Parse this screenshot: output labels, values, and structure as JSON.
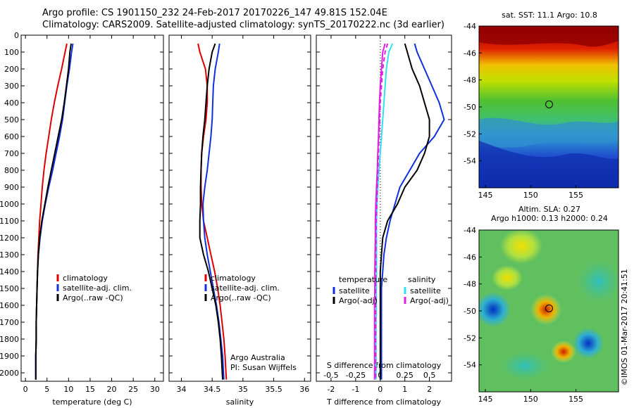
{
  "header": {
    "line1": "Argo profile: CS 1901150_232 24-Feb-2017 20170226_147 49.81S 152.04E",
    "line2": "Climatology: CARS2009. Satellite-adjusted climatology: synTS_20170222.nc (3d earlier)"
  },
  "colors": {
    "climatology": "#e00000",
    "satellite": "#1030e0",
    "argo": "#000000",
    "argo_adj_s": "#e020e0",
    "sat_s": "#30e0f0"
  },
  "chart_data": [
    {
      "type": "line",
      "name": "temperature-profile",
      "xlabel": "temperature (deg C)",
      "xlim": [
        -1,
        32
      ],
      "ylim": [
        2050,
        0
      ],
      "xticks": [
        0,
        5,
        10,
        15,
        20,
        25,
        30
      ],
      "yticks": [
        0,
        100,
        200,
        300,
        400,
        500,
        600,
        700,
        800,
        900,
        1000,
        1100,
        1200,
        1300,
        1400,
        1500,
        1600,
        1700,
        1800,
        1900,
        2000
      ],
      "legend": [
        "climatology",
        "satellite-adj. clim.",
        "Argo(..raw -QC)"
      ],
      "series": [
        {
          "name": "climatology",
          "color": "climatology",
          "x": [
            9.6,
            9.2,
            8.4,
            7.5,
            6.7,
            6.0,
            5.4,
            4.8,
            4.3,
            3.9,
            3.6,
            3.3,
            3.1,
            2.9,
            2.8,
            2.7,
            2.6,
            2.5,
            2.5,
            2.4,
            2.4
          ],
          "y": [
            50,
            100,
            200,
            300,
            400,
            500,
            600,
            700,
            800,
            900,
            1000,
            1100,
            1200,
            1300,
            1400,
            1500,
            1600,
            1700,
            1800,
            1900,
            2040
          ]
        },
        {
          "name": "satellite-adj. clim.",
          "color": "satellite",
          "x": [
            11.0,
            10.7,
            10.2,
            9.6,
            9.1,
            8.6,
            7.9,
            7.1,
            6.3,
            5.4,
            4.6,
            3.9,
            3.4,
            3.0,
            2.8,
            2.7,
            2.6,
            2.5,
            2.5,
            2.4,
            2.4
          ],
          "y": [
            50,
            100,
            200,
            300,
            400,
            500,
            600,
            700,
            800,
            900,
            1000,
            1100,
            1200,
            1300,
            1400,
            1500,
            1600,
            1700,
            1800,
            1900,
            2040
          ]
        },
        {
          "name": "Argo(..raw -QC)",
          "color": "argo",
          "x": [
            10.6,
            10.3,
            10.0,
            9.5,
            9.0,
            8.4,
            7.6,
            6.8,
            6.0,
            5.2,
            4.5,
            3.8,
            3.3,
            3.0,
            2.8,
            2.7,
            2.6,
            2.5,
            2.5,
            2.4,
            2.4
          ],
          "y": [
            50,
            100,
            200,
            300,
            400,
            500,
            600,
            700,
            800,
            900,
            1000,
            1100,
            1200,
            1300,
            1400,
            1500,
            1600,
            1700,
            1800,
            1900,
            2040
          ]
        }
      ]
    },
    {
      "type": "line",
      "name": "salinity-profile",
      "xlabel": "salinity",
      "xlim": [
        33.8,
        36.1
      ],
      "ylim": [
        2050,
        0
      ],
      "xticks": [
        34,
        34.5,
        35,
        35.5,
        36
      ],
      "legend": [
        "climatology",
        "satellite-adj. clim.",
        "Argo(..raw -QC)"
      ],
      "annotation": [
        "Argo Australia",
        "PI: Susan Wijffels"
      ],
      "series": [
        {
          "name": "climatology",
          "color": "climatology",
          "x": [
            34.27,
            34.3,
            34.39,
            34.42,
            34.42,
            34.4,
            34.36,
            34.33,
            34.32,
            34.32,
            34.33,
            34.36,
            34.42,
            34.48,
            34.54,
            34.59,
            34.63,
            34.66,
            34.69,
            34.71,
            34.73
          ],
          "y": [
            50,
            100,
            200,
            300,
            400,
            500,
            600,
            700,
            800,
            900,
            1000,
            1100,
            1200,
            1300,
            1400,
            1500,
            1600,
            1700,
            1800,
            1900,
            2040
          ]
        },
        {
          "name": "satellite-adj. clim.",
          "color": "satellite",
          "x": [
            34.62,
            34.6,
            34.55,
            34.52,
            34.51,
            34.5,
            34.48,
            34.45,
            34.42,
            34.38,
            34.35,
            34.36,
            34.38,
            34.42,
            34.47,
            34.52,
            34.57,
            34.61,
            34.64,
            34.67,
            34.69
          ],
          "y": [
            50,
            100,
            200,
            300,
            400,
            500,
            600,
            700,
            800,
            900,
            1000,
            1100,
            1200,
            1300,
            1400,
            1500,
            1600,
            1700,
            1800,
            1900,
            2040
          ]
        },
        {
          "name": "Argo(..raw -QC)",
          "color": "argo",
          "x": [
            34.55,
            34.5,
            34.45,
            34.42,
            34.4,
            34.38,
            34.35,
            34.33,
            34.32,
            34.31,
            34.31,
            34.3,
            34.3,
            34.36,
            34.44,
            34.5,
            34.56,
            34.6,
            34.63,
            34.65,
            34.67
          ],
          "y": [
            50,
            100,
            200,
            300,
            400,
            500,
            600,
            700,
            800,
            900,
            1000,
            1100,
            1200,
            1300,
            1400,
            1500,
            1600,
            1700,
            1800,
            1900,
            2040
          ]
        }
      ]
    },
    {
      "type": "line",
      "name": "difference-profile",
      "xlabel": "T difference from climatology",
      "xlabel_top": "S difference from climatology",
      "xlim": [
        -2.6,
        2.9
      ],
      "ylim": [
        2050,
        0
      ],
      "xticks": [
        -2,
        -1,
        0,
        1,
        2
      ],
      "xticks_s": [
        "-0.5",
        "-0.25",
        "0",
        "0.25",
        "0.5"
      ],
      "legend_temperature": {
        "title": "temperature",
        "items": [
          "satellite",
          "Argo(-adj)"
        ]
      },
      "legend_salinity": {
        "title": "salinity",
        "items": [
          "satellite",
          "Argo(-adj)"
        ]
      },
      "series": [
        {
          "name": "T satellite",
          "color": "satellite",
          "x": [
            1.4,
            1.5,
            1.8,
            2.1,
            2.4,
            2.6,
            2.2,
            1.6,
            1.2,
            0.8,
            0.6,
            0.4,
            0.25,
            0.15,
            0.1,
            0.05,
            0.05,
            0.05,
            0.05,
            0.05,
            0.05
          ],
          "y": [
            50,
            100,
            200,
            300,
            400,
            500,
            600,
            700,
            800,
            900,
            1000,
            1100,
            1200,
            1300,
            1400,
            1500,
            1600,
            1700,
            1800,
            1900,
            2040
          ]
        },
        {
          "name": "T Argo(-adj)",
          "color": "argo",
          "x": [
            1.0,
            1.1,
            1.3,
            1.6,
            1.8,
            2.0,
            2.0,
            1.8,
            1.5,
            1.0,
            0.7,
            0.3,
            0.1,
            0.05,
            0.0,
            0.0,
            0.0,
            0.0,
            0.0,
            0.0,
            0.0
          ],
          "y": [
            50,
            100,
            200,
            300,
            400,
            500,
            600,
            700,
            800,
            900,
            1000,
            1100,
            1200,
            1300,
            1400,
            1500,
            1600,
            1700,
            1800,
            1900,
            2040
          ]
        },
        {
          "name": "S satellite",
          "color": "sat_s",
          "x": [
            0.5,
            0.35,
            0.25,
            0.2,
            0.15,
            0.1,
            0.05,
            0.0,
            -0.05,
            -0.1,
            -0.13,
            -0.15,
            -0.15,
            -0.15,
            -0.15,
            -0.16,
            -0.16,
            -0.17,
            -0.17,
            -0.17,
            -0.17
          ],
          "y": [
            50,
            100,
            200,
            300,
            400,
            500,
            600,
            700,
            800,
            900,
            1000,
            1100,
            1200,
            1300,
            1400,
            1500,
            1600,
            1700,
            1800,
            1900,
            2040
          ]
        },
        {
          "name": "S Argo(-adj)",
          "color": "argo_adj_s",
          "x": [
            0.2,
            0.1,
            0.05,
            0.0,
            -0.03,
            -0.05,
            -0.07,
            -0.1,
            -0.12,
            -0.15,
            -0.18,
            -0.2,
            -0.2,
            -0.21,
            -0.22,
            -0.22,
            -0.23,
            -0.23,
            -0.23,
            -0.23,
            -0.23
          ],
          "y": [
            50,
            100,
            200,
            300,
            400,
            500,
            600,
            700,
            800,
            900,
            1000,
            1100,
            1200,
            1300,
            1400,
            1500,
            1600,
            1700,
            1800,
            1900,
            2040
          ]
        },
        {
          "name": "S climatology dashed",
          "color": "argo_adj_s",
          "dashed": true,
          "x": [
            0.3,
            0.2,
            0.1,
            0.05,
            0.0,
            -0.02,
            -0.05,
            -0.07,
            -0.1,
            -0.12,
            -0.14,
            -0.16,
            -0.17,
            -0.18,
            -0.18,
            -0.19,
            -0.19,
            -0.19,
            -0.19,
            -0.19,
            -0.19
          ],
          "y": [
            50,
            100,
            200,
            300,
            400,
            500,
            600,
            700,
            800,
            900,
            1000,
            1100,
            1200,
            1300,
            1400,
            1500,
            1600,
            1700,
            1800,
            1900,
            2040
          ]
        }
      ]
    },
    {
      "type": "heatmap",
      "name": "sst-map",
      "title": "sat. SST: 11.1  Argo: 10.8",
      "xticks": [
        145,
        150,
        155
      ],
      "yticks": [
        -44,
        -46,
        -48,
        -50,
        -52,
        -54
      ],
      "xlim": [
        144.3,
        159.7
      ],
      "ylim": [
        -56,
        -44
      ],
      "marker": {
        "lon": 152.04,
        "lat": -49.81
      }
    },
    {
      "type": "heatmap",
      "name": "sla-map",
      "title_line1": "Altim. SLA: 0.27",
      "title_line2": "Argo h1000: 0.13 h2000: 0.24",
      "xticks": [
        145,
        150,
        155
      ],
      "yticks": [
        -44,
        -46,
        -48,
        -50,
        -52,
        -54
      ],
      "xlim": [
        144.3,
        159.7
      ],
      "ylim": [
        -56,
        -44
      ],
      "marker": {
        "lon": 152.04,
        "lat": -49.81
      }
    }
  ],
  "footer": {
    "credit": "©IMOS 01-Mar-2017 20:41:51"
  }
}
